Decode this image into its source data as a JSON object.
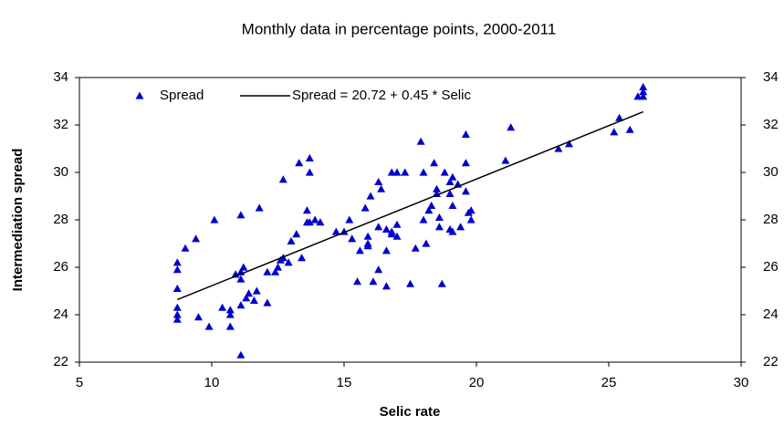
{
  "chart_data": {
    "type": "scatter",
    "title": "Monthly data in percentage points, 2000-2011",
    "x_label": "Selic rate",
    "y_label": "Intermediation spread",
    "xlim": [
      5,
      30
    ],
    "xticks": [
      5,
      10,
      15,
      20,
      25,
      30
    ],
    "ylim": [
      22,
      34
    ],
    "yticks": [
      22,
      24,
      26,
      28,
      30,
      32,
      34
    ],
    "y2lim": [
      22,
      34
    ],
    "y2ticks": [
      22,
      24,
      26,
      28,
      30,
      32,
      34
    ],
    "series": [
      {
        "name": "Spread",
        "type": "scatter",
        "color": "#0000cc",
        "x": [
          8.7,
          8.7,
          8.7,
          8.7,
          8.7,
          8.7,
          9.0,
          9.4,
          9.5,
          9.9,
          10.1,
          10.4,
          10.7,
          10.7,
          10.7,
          10.9,
          11.1,
          11.1,
          11.1,
          11.1,
          11.1,
          11.2,
          11.3,
          11.4,
          11.6,
          11.7,
          11.8,
          12.1,
          12.1,
          12.4,
          12.5,
          12.6,
          12.7,
          12.7,
          12.9,
          13.0,
          13.2,
          13.3,
          13.4,
          13.6,
          13.6,
          13.7,
          13.7,
          13.7,
          13.9,
          14.1,
          14.7,
          15.0,
          15.2,
          15.3,
          15.5,
          15.6,
          15.8,
          15.9,
          15.9,
          15.9,
          16.0,
          16.1,
          16.3,
          16.3,
          16.3,
          16.4,
          16.6,
          16.6,
          16.6,
          16.8,
          16.8,
          16.8,
          17.0,
          17.0,
          17.0,
          17.3,
          17.5,
          17.7,
          17.9,
          18.0,
          18.0,
          18.1,
          18.2,
          18.3,
          18.4,
          18.5,
          18.5,
          18.6,
          18.6,
          18.7,
          18.8,
          19.0,
          19.0,
          19.0,
          19.1,
          19.1,
          19.1,
          19.3,
          19.4,
          19.6,
          19.6,
          19.6,
          19.7,
          19.8,
          19.8,
          21.1,
          21.3,
          23.1,
          23.5,
          25.2,
          25.4,
          25.8,
          26.1,
          26.3,
          26.3,
          26.3
        ],
        "values": [
          26.2,
          25.9,
          25.1,
          24.3,
          24.0,
          23.8,
          26.8,
          27.2,
          23.9,
          23.5,
          28.0,
          24.3,
          24.2,
          24.0,
          23.5,
          25.7,
          28.2,
          25.8,
          25.5,
          24.4,
          22.3,
          26.0,
          24.7,
          24.9,
          24.6,
          25.0,
          28.5,
          24.5,
          25.8,
          25.8,
          26.0,
          26.3,
          29.7,
          26.4,
          26.2,
          27.1,
          27.4,
          30.4,
          26.4,
          28.4,
          27.9,
          30.6,
          30.0,
          27.9,
          28.0,
          27.9,
          27.5,
          27.5,
          28.0,
          27.2,
          25.4,
          26.7,
          28.5,
          27.0,
          27.3,
          26.9,
          29.0,
          25.4,
          29.6,
          27.7,
          25.9,
          29.3,
          27.6,
          25.2,
          26.7,
          30.0,
          27.4,
          27.5,
          30.0,
          27.8,
          27.3,
          30.0,
          25.3,
          26.8,
          31.3,
          30.0,
          28.0,
          27.0,
          28.4,
          28.6,
          30.4,
          29.3,
          29.1,
          28.1,
          27.7,
          25.3,
          30.0,
          29.6,
          29.1,
          27.6,
          29.8,
          28.6,
          27.5,
          29.5,
          27.7,
          31.6,
          30.4,
          29.2,
          28.3,
          28.0,
          28.4,
          30.5,
          31.9,
          31.0,
          31.2,
          31.7,
          32.3,
          31.8,
          33.2,
          33.6,
          33.4,
          33.2
        ]
      },
      {
        "name": "Spread = 20.72 + 0.45 * Selic",
        "type": "line",
        "color": "#000000",
        "x": [
          8.7,
          26.3
        ],
        "values": [
          24.635,
          32.555
        ]
      }
    ]
  }
}
